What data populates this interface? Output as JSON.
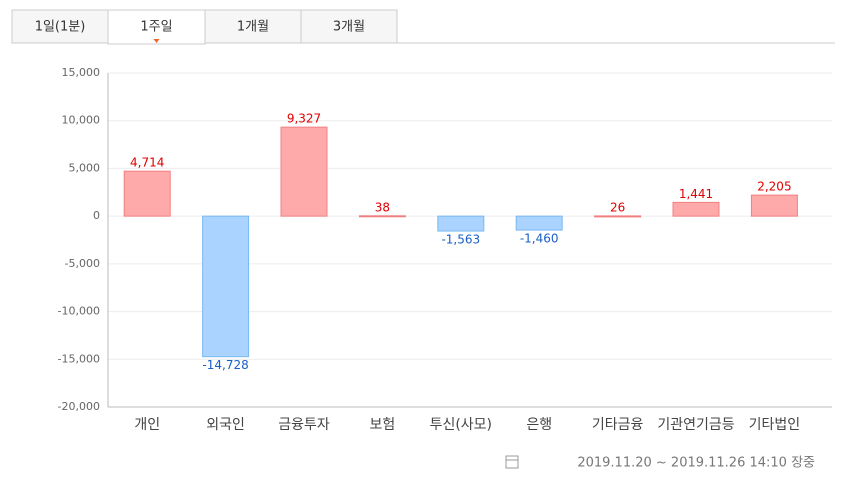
{
  "tabs": [
    "1일(1분)",
    "1주일",
    "1개월",
    "3개월"
  ],
  "active_tab": 1,
  "chart_data": {
    "type": "bar",
    "categories": [
      "개인",
      "외국인",
      "금융투자",
      "보험",
      "투신(사모)",
      "은행",
      "기타금융",
      "기관연기금등",
      "기타법인"
    ],
    "values": [
      4714,
      -14728,
      9327,
      38,
      -1563,
      -1460,
      26,
      1441,
      2205
    ],
    "value_labels": [
      "4,714",
      "-14,728",
      "9,327",
      "38",
      "-1,563",
      "-1,460",
      "26",
      "1,441",
      "2,205"
    ],
    "positive_color": "#ffaaaa",
    "negative_color": "#aad4ff",
    "positive_label_color": "#e00000",
    "negative_label_color": "#1a5fc8",
    "ylim": [
      -20000,
      15000
    ],
    "yticks": [
      {
        "value": -20000,
        "label": "-20,000"
      },
      {
        "value": -15000,
        "label": "-15,000"
      },
      {
        "value": -10000,
        "label": "-10,000"
      },
      {
        "value": -5000,
        "label": "-5,000"
      },
      0,
      {
        "value": 5000,
        "label": "5,000"
      },
      {
        "value": 10000,
        "label": "10,000"
      },
      {
        "value": 15000,
        "label": "15,000"
      }
    ],
    "grid": true
  },
  "footer": "2019.11.20 ~ 2019.11.26 14:10 장중"
}
